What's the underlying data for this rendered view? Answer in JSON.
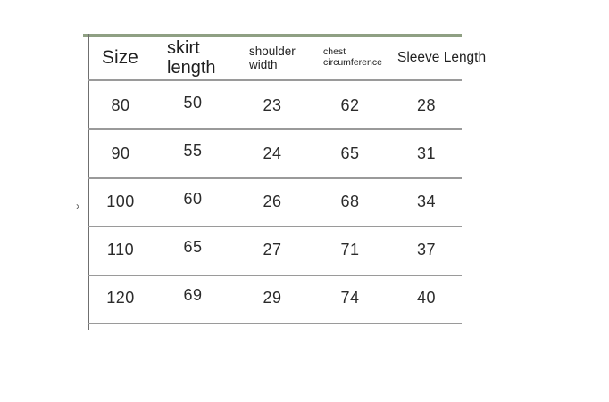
{
  "page": {
    "background": "#ffffff",
    "description": "Garment size chart table"
  },
  "table": {
    "headers": [
      "Size",
      "skirt\nlength",
      "shoulder\nwidth",
      "chest\ncircumference",
      "Sleeve Length"
    ],
    "column_keys": [
      "size",
      "skirt_length",
      "shoulder_width",
      "chest_circumference",
      "sleeve_length"
    ],
    "rows": [
      [
        "80",
        "50",
        "23",
        "62",
        "28"
      ],
      [
        "90",
        "55",
        "24",
        "65",
        "31"
      ],
      [
        "100",
        "60",
        "26",
        "68",
        "34"
      ],
      [
        "110",
        "65",
        "27",
        "71",
        "37"
      ],
      [
        "120",
        "69",
        "29",
        "74",
        "40"
      ]
    ]
  },
  "marks": {
    "chevron": "›"
  },
  "colors": {
    "top_border": "#8fa083",
    "grid_line": "#9a9a9a",
    "left_border": "#6f6f6f",
    "text": "#262626"
  }
}
